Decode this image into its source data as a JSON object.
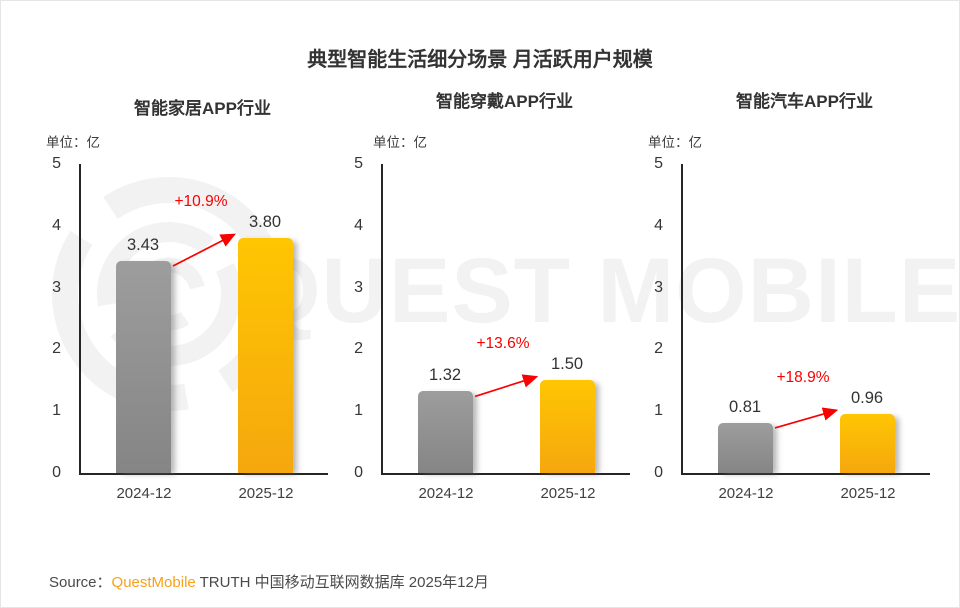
{
  "title": "典型智能生活细分场景 月活跃用户规模",
  "watermark": {
    "text": "QUEST MOBILE",
    "logo": "questmobile-rings-logo"
  },
  "chart_data": {
    "type": "bar",
    "title": "典型智能生活细分场景 月活跃用户规模",
    "unit_label": "单位：亿",
    "categories": [
      "2024-12",
      "2025-12"
    ],
    "ylim": [
      0,
      5
    ],
    "ytick_labels": [
      "0",
      "1",
      "2",
      "3",
      "4",
      "5"
    ],
    "grid": false,
    "legend": "none",
    "bar_colors": {
      "2024-12": "#919191",
      "2025-12": "#FFB70A"
    },
    "growth_color": "#FA0000",
    "panels": [
      {
        "title": "智能家居APP行业",
        "values": [
          3.43,
          3.8
        ],
        "value_labels": [
          "3.43",
          "3.80"
        ],
        "growth_label": "+10.9%"
      },
      {
        "title": "智能穿戴APP行业",
        "values": [
          1.32,
          1.5
        ],
        "value_labels": [
          "1.32",
          "1.50"
        ],
        "growth_label": "+13.6%"
      },
      {
        "title": "智能汽车APP行业",
        "values": [
          0.81,
          0.96
        ],
        "value_labels": [
          "0.81",
          "0.96"
        ],
        "growth_label": "+18.9%"
      }
    ]
  },
  "source": {
    "prefix": "Source：",
    "brand": "QuestMobile",
    "suffix": " TRUTH 中国移动互联网数据库 2025年12月"
  }
}
